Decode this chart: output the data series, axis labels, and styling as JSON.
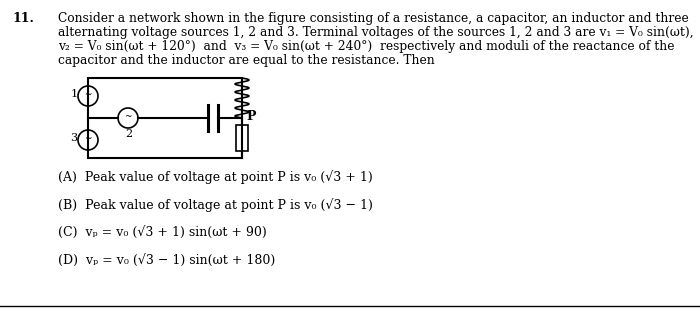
{
  "question_number": "11.",
  "line1": "Consider a network shown in the figure consisting of a resistance, a capacitor, an inductor and three",
  "line2": "alternating voltage sources 1, 2 and 3. Terminal voltages of the sources 1, 2 and 3 are v₁ = V₀ sin(ωt),",
  "line3": "v₂ = V₀ sin(ωt + 120°)  and  v₃ = V₀ sin(ωt + 240°)  respectively and moduli of the reactance of the",
  "line4": "capacitor and the inductor are equal to the resistance. Then",
  "optA": "(A)  Peak value of voltage at point P is v₀ (√3 + 1)",
  "optB": "(B)  Peak value of voltage at point P is v₀ (√3 − 1)",
  "optC": "(C)  vₚ = v₀ (√3 + 1) sin(ωt + 90)",
  "optD": "(D)  vₚ = v₀ (√3 − 1) sin(ωt + 180)",
  "bg_color": "#ffffff",
  "text_color": "#000000",
  "fs_num": 9.0,
  "fs_body": 8.8,
  "fs_opt": 9.0
}
